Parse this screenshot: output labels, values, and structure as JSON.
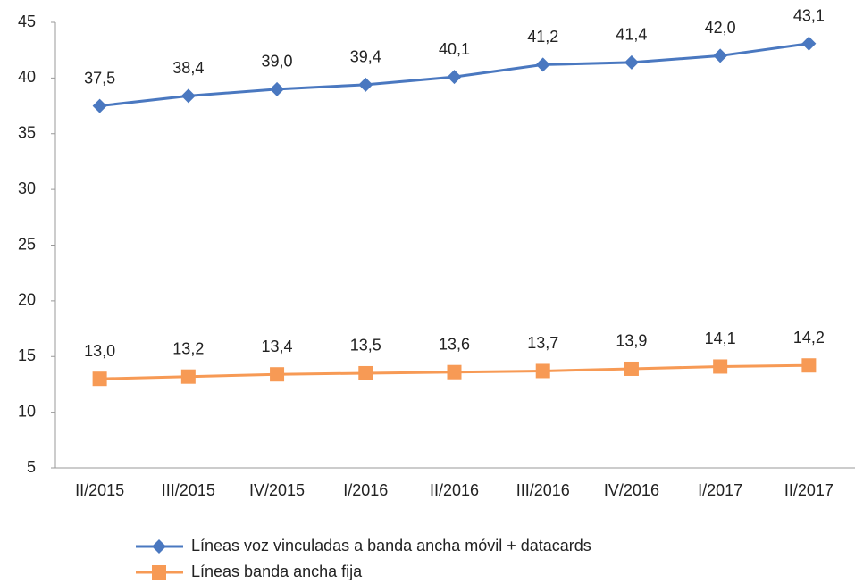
{
  "chart_data": {
    "type": "line",
    "categories": [
      "II/2015",
      "III/2015",
      "IV/2015",
      "I/2016",
      "II/2016",
      "III/2016",
      "IV/2016",
      "I/2017",
      "II/2017"
    ],
    "series": [
      {
        "name": "Líneas voz vinculadas a banda ancha móvil + datacards",
        "color": "#4a78c0",
        "marker": "diamond",
        "values": [
          37.5,
          38.4,
          39.0,
          39.4,
          40.1,
          41.2,
          41.4,
          42.0,
          43.1
        ],
        "value_labels": [
          "37,5",
          "38,4",
          "39,0",
          "39,4",
          "40,1",
          "41,2",
          "41,4",
          "42,0",
          "43,1"
        ]
      },
      {
        "name": "Líneas banda ancha fija",
        "color": "#f79a55",
        "marker": "square",
        "values": [
          13.0,
          13.2,
          13.4,
          13.5,
          13.6,
          13.7,
          13.9,
          14.1,
          14.2
        ],
        "value_labels": [
          "13,0",
          "13,2",
          "13,4",
          "13,5",
          "13,6",
          "13,7",
          "13,9",
          "14,1",
          "14,2"
        ]
      }
    ],
    "ylim": [
      5,
      45
    ],
    "yticks": [
      5,
      10,
      15,
      20,
      25,
      30,
      35,
      40,
      45
    ],
    "grid": false,
    "legend": "bottom"
  }
}
